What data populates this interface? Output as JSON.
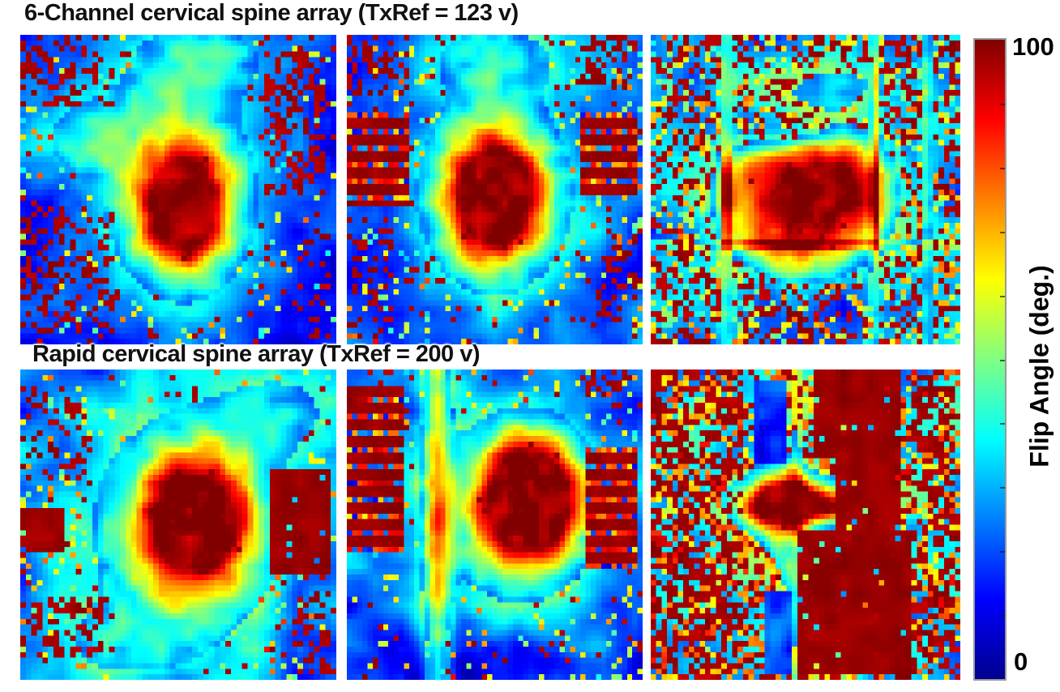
{
  "chart_data": {
    "type": "heatmap",
    "layout": {
      "grid_rows": 2,
      "grid_cols": 3,
      "background": "#ffffff"
    },
    "value_range": [
      0,
      100
    ],
    "colormap": "jet",
    "colorbar": {
      "max_label": "100",
      "min_label": "0",
      "axis_label": "Flip Angle (deg.)",
      "orientation": "vertical",
      "stops_bottom_to_top": [
        "#00008F",
        "#0000FF",
        "#0080FF",
        "#00FFFF",
        "#80FF80",
        "#FFFF00",
        "#FF8000",
        "#FF0000",
        "#800000"
      ]
    },
    "rows": [
      {
        "title": "6-Channel cervical spine array (TxRef = 123 v)",
        "panels": [
          {
            "description": "Sagittal flip-angle map: red hotspot (~85-100 deg) slightly left of center, cyan halo, deep blue noisy background with dark-red speckle clusters at top-left, bottom-left and right column.",
            "grid": [
              57,
              56
            ],
            "seed": 11,
            "coreSpeckle": 0.06,
            "blobs": [
              {
                "cx": 0.52,
                "cy": 0.56,
                "sx": 0.15,
                "sy": 0.21,
                "amp": 1.02
              },
              {
                "cx": 0.5,
                "cy": 0.5,
                "sx": 0.3,
                "sy": 0.4,
                "amp": 0.42
              },
              {
                "cx": 0.2,
                "cy": 0.33,
                "sx": 0.2,
                "sy": 0.16,
                "amp": 0.3
              },
              {
                "cx": 0.58,
                "cy": 0.06,
                "sx": 0.28,
                "sy": 0.16,
                "amp": 0.32
              }
            ],
            "streaks": [],
            "blocks": [
              {
                "x": 0.78,
                "y": 0.04,
                "w": 0.2,
                "h": 0.48,
                "mode": "noisy",
                "p": 0.4
              },
              {
                "x": 0.0,
                "y": 0.55,
                "w": 0.3,
                "h": 0.42,
                "mode": "noisy",
                "p": 0.3
              },
              {
                "x": 0.0,
                "y": 0.0,
                "w": 0.3,
                "h": 0.22,
                "mode": "noisy",
                "p": 0.28
              },
              {
                "x": 0.9,
                "y": 0.55,
                "w": 0.1,
                "h": 0.45,
                "mode": "noisy",
                "p": 0.12
              }
            ],
            "bg": {
              "base": 0.05,
              "range": 0.18,
              "pHigh": 0.05,
              "pMid": 0.06
            }
          },
          {
            "description": "Sagittal map: central red hotspot ~90-100 deg with yellow ring, horizontal dark-red striped artifact blocks on left and right flanks, blue noisy top and bottom.",
            "grid": [
              57,
              56
            ],
            "seed": 22,
            "coreSpeckle": 0.05,
            "blobs": [
              {
                "cx": 0.5,
                "cy": 0.53,
                "sx": 0.16,
                "sy": 0.2,
                "amp": 1.06
              },
              {
                "cx": 0.5,
                "cy": 0.5,
                "sx": 0.3,
                "sy": 0.36,
                "amp": 0.5
              },
              {
                "cx": 0.5,
                "cy": 0.06,
                "sx": 0.3,
                "sy": 0.14,
                "amp": 0.3
              }
            ],
            "streaks": [],
            "blocks": [
              {
                "x": 0.0,
                "y": 0.25,
                "w": 0.2,
                "h": 0.3,
                "mode": "stripes"
              },
              {
                "x": 0.79,
                "y": 0.25,
                "w": 0.21,
                "h": 0.26,
                "mode": "stripes"
              },
              {
                "x": 0.0,
                "y": 0.0,
                "w": 0.2,
                "h": 0.2,
                "mode": "noisy",
                "p": 0.3
              },
              {
                "x": 0.8,
                "y": 0.0,
                "w": 0.2,
                "h": 0.18,
                "mode": "noisy",
                "p": 0.3
              },
              {
                "x": 0.0,
                "y": 0.6,
                "w": 0.15,
                "h": 0.4,
                "mode": "noisy",
                "p": 0.2
              },
              {
                "x": 0.85,
                "y": 0.62,
                "w": 0.15,
                "h": 0.38,
                "mode": "noisy",
                "p": 0.2
              }
            ],
            "bg": {
              "base": 0.08,
              "range": 0.2,
              "pHigh": 0.05,
              "pMid": 0.08
            }
          },
          {
            "description": "Axial map: large round orange-red disk (~75-95 deg) with darker red patches, cyan-blue arc at upper left of disk, yellow-green crescent on left rim, busy red/blue noise with vertical streaks outside.",
            "grid": [
              57,
              56
            ],
            "seed": 33,
            "coreSpeckle": 0.04,
            "blobs": [
              {
                "cx": 0.5,
                "cy": 0.52,
                "sx": 0.3,
                "sy": 0.28,
                "amp": 0.92,
                "pow": 2
              },
              {
                "cx": 0.56,
                "cy": 0.5,
                "sx": 0.13,
                "sy": 0.1,
                "amp": 0.22
              },
              {
                "cx": 0.44,
                "cy": 0.3,
                "sx": 0.18,
                "sy": 0.07,
                "amp": -0.55
              },
              {
                "cx": 0.62,
                "cy": 0.15,
                "sx": 0.3,
                "sy": 0.1,
                "amp": 0.3
              }
            ],
            "streaks": [
              {
                "dir": "v",
                "pos": 0.24,
                "w": 0.02,
                "amp": 0.5
              },
              {
                "dir": "v",
                "pos": 0.73,
                "w": 0.015,
                "amp": 0.38
              },
              {
                "dir": "v",
                "pos": 0.9,
                "w": 0.018,
                "amp": 0.42
              },
              {
                "dir": "h",
                "pos": 0.68,
                "w": 0.015,
                "amp": 0.3
              }
            ],
            "blocks": [],
            "bg": {
              "base": 0.12,
              "range": 0.26,
              "pHigh": 0.3,
              "pMid": 0.2
            }
          }
        ]
      },
      {
        "title": "Rapid cervical spine array (TxRef = 200 v)",
        "panels": [
          {
            "description": "Sagittal map: broad orange-red block right of center (~80-95 deg), saturated dark-red patch at right edge, blue streaky left half and bottom, dark-red noise clusters at left edge corners.",
            "grid": [
              57,
              56
            ],
            "seed": 44,
            "coreSpeckle": 0.05,
            "blobs": [
              {
                "cx": 0.56,
                "cy": 0.5,
                "sx": 0.19,
                "sy": 0.23,
                "amp": 1.02
              },
              {
                "cx": 0.5,
                "cy": 0.5,
                "sx": 0.36,
                "sy": 0.42,
                "amp": 0.42
              },
              {
                "cx": 0.85,
                "cy": 0.12,
                "sx": 0.25,
                "sy": 0.18,
                "amp": 0.28
              },
              {
                "cx": 0.3,
                "cy": 0.9,
                "sx": 0.3,
                "sy": 0.15,
                "amp": 0.25
              }
            ],
            "streaks": [],
            "blocks": [
              {
                "x": 0.8,
                "y": 0.32,
                "w": 0.2,
                "h": 0.34,
                "mode": "solid"
              },
              {
                "x": 0.0,
                "y": 0.45,
                "w": 0.14,
                "h": 0.14,
                "mode": "solid"
              },
              {
                "x": 0.0,
                "y": 0.74,
                "w": 0.3,
                "h": 0.2,
                "mode": "noisy",
                "p": 0.35
              },
              {
                "x": 0.0,
                "y": 0.05,
                "w": 0.22,
                "h": 0.33,
                "mode": "noisy",
                "p": 0.22
              },
              {
                "x": 0.88,
                "y": 0.72,
                "w": 0.12,
                "h": 0.28,
                "mode": "noisy",
                "p": 0.3
              }
            ],
            "bg": {
              "base": 0.1,
              "range": 0.22,
              "pHigh": 0.04,
              "pMid": 0.07
            }
          },
          {
            "description": "Sagittal map: saturated dark-red hotspot (>100 deg clipped) right of center, yellow vertical band near x=0.3, cyan surround, horizontal dark-red striped blocks on both flanks, deep blue bottom third.",
            "grid": [
              57,
              56
            ],
            "seed": 55,
            "coreSpeckle": 0.04,
            "blobs": [
              {
                "cx": 0.63,
                "cy": 0.42,
                "sx": 0.17,
                "sy": 0.2,
                "amp": 1.2
              },
              {
                "cx": 0.55,
                "cy": 0.45,
                "sx": 0.3,
                "sy": 0.34,
                "amp": 0.5
              },
              {
                "cx": 0.5,
                "cy": 0.97,
                "sx": 0.4,
                "sy": 0.12,
                "amp": -0.2
              }
            ],
            "streaks": [
              {
                "dir": "v",
                "pos": 0.3,
                "w": 0.05,
                "amp": 0.5
              }
            ],
            "blocks": [
              {
                "x": 0.0,
                "y": 0.04,
                "w": 0.19,
                "h": 0.55,
                "mode": "stripes"
              },
              {
                "x": 0.81,
                "y": 0.25,
                "w": 0.19,
                "h": 0.4,
                "mode": "stripes"
              },
              {
                "x": 0.0,
                "y": 0.0,
                "w": 0.15,
                "h": 0.1,
                "mode": "noisy",
                "p": 0.3
              },
              {
                "x": 0.8,
                "y": 0.0,
                "w": 0.2,
                "h": 0.12,
                "mode": "noisy",
                "p": 0.25
              }
            ],
            "bg": {
              "base": 0.1,
              "range": 0.24,
              "pHigh": 0.03,
              "pMid": 0.06
            }
          },
          {
            "description": "Axial map: fan of yellow/cyan/blue streaks in center-left, large saturated dark-red regions at top right and bottom center-right, warm red/orange noisy columns on left and right edges, navy vertical strips near center.",
            "grid": [
              57,
              56
            ],
            "seed": 66,
            "coreSpeckle": 0.03,
            "blobs": [
              {
                "cx": 0.45,
                "cy": 0.42,
                "sx": 0.2,
                "sy": 0.1,
                "amp": 0.8
              },
              {
                "cx": 0.4,
                "cy": 0.55,
                "sx": 0.08,
                "sy": 0.25,
                "amp": 0.5
              },
              {
                "cx": 0.55,
                "cy": 0.44,
                "sx": 0.25,
                "sy": 0.06,
                "amp": 0.5
              },
              {
                "cx": 0.37,
                "cy": 0.68,
                "sx": 0.05,
                "sy": 0.15,
                "amp": -0.3
              }
            ],
            "streaks": [
              {
                "dir": "v",
                "pos": 0.47,
                "w": 0.03,
                "amp": 0.25
              }
            ],
            "blocks": [
              {
                "x": 0.52,
                "y": 0.0,
                "w": 0.3,
                "h": 0.28,
                "mode": "solid"
              },
              {
                "x": 0.48,
                "y": 0.52,
                "w": 0.36,
                "h": 0.48,
                "mode": "solid"
              },
              {
                "x": 0.6,
                "y": 0.28,
                "w": 0.22,
                "h": 0.24,
                "mode": "solid"
              },
              {
                "x": 0.33,
                "y": 0.02,
                "w": 0.1,
                "h": 0.28,
                "mode": "cool"
              },
              {
                "x": 0.36,
                "y": 0.72,
                "w": 0.09,
                "h": 0.28,
                "mode": "cool"
              },
              {
                "x": 0.0,
                "y": 0.0,
                "w": 0.3,
                "h": 1.0,
                "mode": "noisy",
                "p": 0.35
              },
              {
                "x": 0.84,
                "y": 0.0,
                "w": 0.16,
                "h": 1.0,
                "mode": "noisy",
                "p": 0.35
              }
            ],
            "bg": {
              "base": 0.2,
              "range": 0.3,
              "pHigh": 0.25,
              "pMid": 0.3,
              "midLo": 0.5,
              "midHi": 0.95
            }
          }
        ]
      }
    ]
  }
}
